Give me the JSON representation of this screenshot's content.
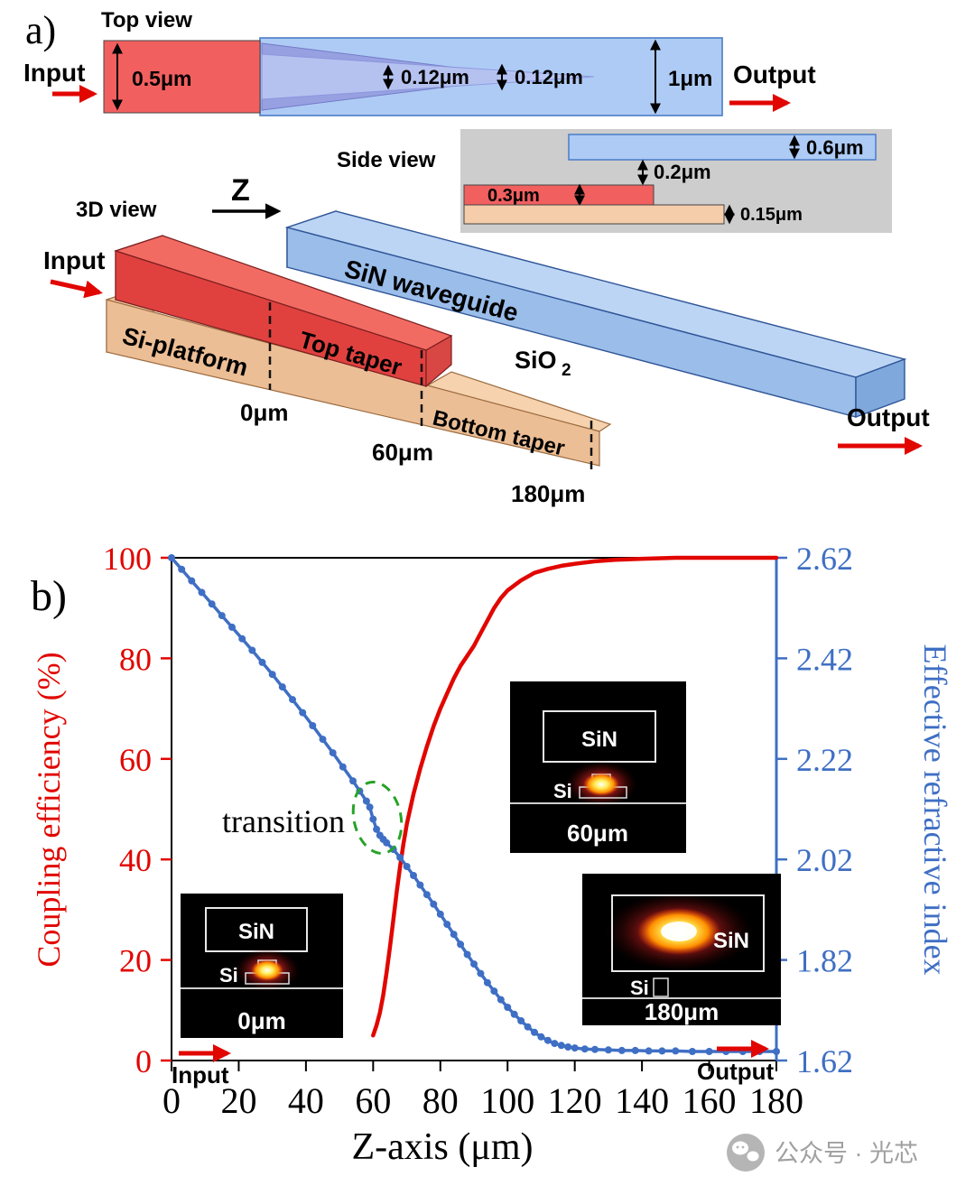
{
  "panel_a": {
    "label": "a)",
    "top_view": {
      "title": "Top view",
      "input_label": "Input",
      "output_label": "Output",
      "dim_si_width": "0.5μm",
      "dim_taper_tip_1": "0.12μm",
      "dim_taper_tip_2": "0.12μm",
      "dim_sin_width": "1μm"
    },
    "side_view": {
      "title": "Side view",
      "dim_sin_thickness": "0.6μm",
      "dim_gap": "0.2μm",
      "dim_si_thickness": "0.3μm",
      "dim_platform_thickness": "0.15μm"
    },
    "view_3d": {
      "title": "3D view",
      "z_axis_label": "Z",
      "input_label": "Input",
      "output_label": "Output",
      "si_platform_label": "Si-platform",
      "top_taper_label": "Top taper",
      "bottom_taper_label": "Bottom taper",
      "sin_waveguide_label": "SiN waveguide",
      "sio2_label": "SiO",
      "sio2_sub": "2",
      "z0_label": "0μm",
      "z60_label": "60μm",
      "z180_label": "180μm"
    }
  },
  "panel_b": {
    "label": "b)",
    "transition_label": "transition",
    "input_label": "Input",
    "output_label": "Output",
    "insets": [
      {
        "sin": "SiN",
        "si": "Si",
        "z": "0μm"
      },
      {
        "sin": "SiN",
        "si": "Si",
        "z": "60μm"
      },
      {
        "sin": "SiN",
        "si": "Si",
        "z": "180μm"
      }
    ]
  },
  "chart_data": {
    "type": "line",
    "title": "",
    "xlabel": "Z-axis (μm)",
    "xlim": [
      0,
      180
    ],
    "x_ticks": [
      0,
      20,
      40,
      60,
      80,
      100,
      120,
      140,
      160,
      180
    ],
    "left_axis": {
      "label": "Coupling efficiency (%)",
      "color": "#e10600",
      "lim": [
        0,
        100
      ],
      "ticks": [
        0,
        20,
        40,
        60,
        80,
        100
      ]
    },
    "right_axis": {
      "label": "Effective refractive index",
      "color": "#3f6fc4",
      "lim": [
        1.62,
        2.62
      ],
      "decimals": 2,
      "ticks": [
        1.62,
        1.82,
        2.02,
        2.22,
        2.42,
        2.62
      ]
    },
    "annotation": "transition",
    "legend": "none",
    "grid": false,
    "series": [
      {
        "name": "coupling-efficiency",
        "axis": "left",
        "color": "#e10600",
        "width": 4.5,
        "x": [
          60,
          61,
          62,
          63,
          64,
          65,
          66,
          67,
          68,
          69,
          70,
          72,
          74,
          76,
          78,
          80,
          82,
          84,
          86,
          88,
          90,
          92,
          94,
          96,
          98,
          100,
          104,
          108,
          112,
          116,
          120,
          126,
          132,
          140,
          150,
          160,
          170,
          180
        ],
        "y": [
          5,
          7,
          9.5,
          13,
          17.5,
          22.5,
          28,
          33.5,
          38.5,
          43,
          47,
          53,
          58,
          62.5,
          66.5,
          70,
          73,
          76,
          78.5,
          80.5,
          82.5,
          85,
          87.5,
          90,
          92,
          93.5,
          95.5,
          97,
          97.8,
          98.4,
          98.8,
          99.3,
          99.6,
          99.8,
          100,
          100,
          100,
          100
        ]
      },
      {
        "name": "effective-index",
        "axis": "right",
        "color": "#3f6fc4",
        "width": 3.5,
        "marker": "dot",
        "x": [
          0,
          3,
          6,
          9,
          12,
          15,
          18,
          21,
          24,
          27,
          30,
          33,
          36,
          39,
          42,
          45,
          48,
          51,
          54,
          56,
          58,
          59,
          60,
          61,
          62,
          63,
          64,
          66,
          68,
          70,
          72,
          74,
          76,
          78,
          80,
          82,
          84,
          86,
          88,
          90,
          92,
          94,
          96,
          98,
          100,
          102,
          104,
          106,
          108,
          110,
          112,
          114,
          116,
          118,
          120,
          123,
          126,
          130,
          134,
          138,
          142,
          146,
          150,
          155,
          160,
          165,
          170,
          175,
          180
        ],
        "y": [
          2.62,
          2.597,
          2.574,
          2.551,
          2.528,
          2.505,
          2.482,
          2.459,
          2.436,
          2.412,
          2.388,
          2.363,
          2.338,
          2.312,
          2.286,
          2.259,
          2.232,
          2.204,
          2.176,
          2.156,
          2.136,
          2.124,
          2.1,
          2.08,
          2.068,
          2.06,
          2.053,
          2.04,
          2.024,
          2.006,
          1.988,
          1.969,
          1.95,
          1.931,
          1.911,
          1.891,
          1.871,
          1.851,
          1.831,
          1.812,
          1.793,
          1.775,
          1.758,
          1.741,
          1.726,
          1.712,
          1.699,
          1.687,
          1.676,
          1.667,
          1.66,
          1.654,
          1.65,
          1.647,
          1.645,
          1.643,
          1.642,
          1.641,
          1.64,
          1.64,
          1.639,
          1.639,
          1.639,
          1.638,
          1.638,
          1.638,
          1.638,
          1.638,
          1.638
        ]
      }
    ]
  },
  "watermark": {
    "text": "公众号 · 光芯"
  }
}
